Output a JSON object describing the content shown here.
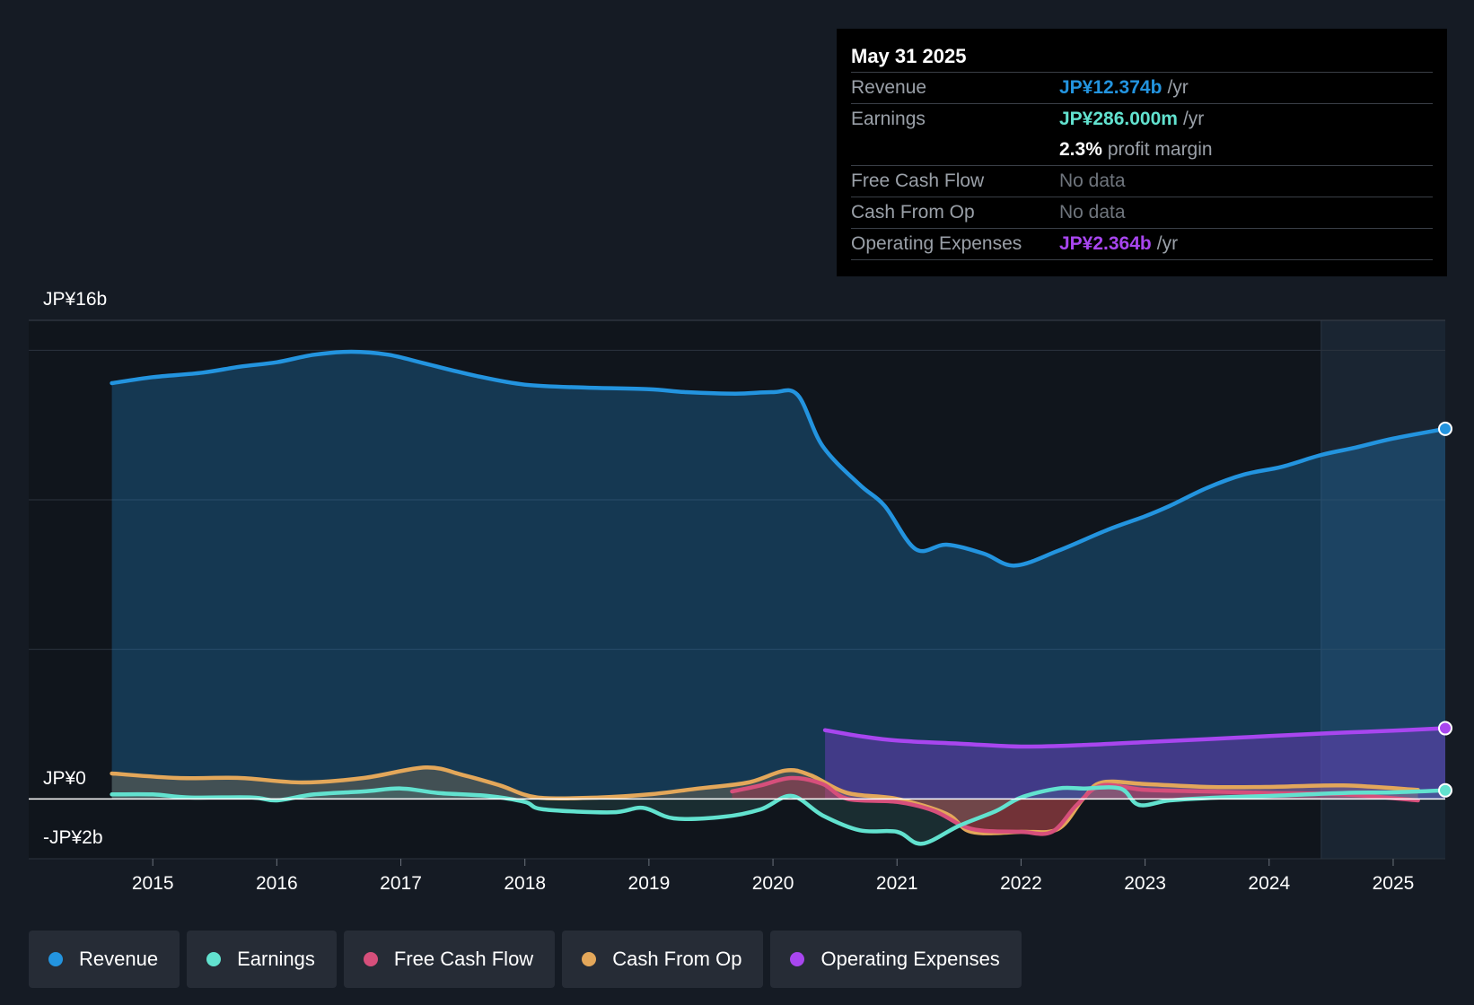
{
  "colors": {
    "revenue": "#2394df",
    "earnings": "#62e2cf",
    "free_cash_flow": "#d64f7b",
    "cash_from_op": "#e3a75a",
    "operating_expenses": "#a846ef"
  },
  "tooltip": {
    "date": "May 31 2025",
    "rows": [
      {
        "label": "Revenue",
        "value": "JP¥12.374b",
        "unit": "/yr"
      },
      {
        "label": "Earnings",
        "value": "JP¥286.000m",
        "unit": "/yr"
      },
      {
        "label": "",
        "value": "2.3%",
        "unit": "profit margin"
      },
      {
        "label": "Free Cash Flow",
        "value": "No data",
        "unit": ""
      },
      {
        "label": "Cash From Op",
        "value": "No data",
        "unit": ""
      },
      {
        "label": "Operating Expenses",
        "value": "JP¥2.364b",
        "unit": "/yr"
      }
    ]
  },
  "legend": [
    "Revenue",
    "Earnings",
    "Free Cash Flow",
    "Cash From Op",
    "Operating Expenses"
  ],
  "chart_data": {
    "type": "area",
    "title": "",
    "xlabel": "",
    "ylabel": "",
    "ylim": [
      -2,
      16
    ],
    "xlim": [
      2014.0,
      2025.42
    ],
    "forecast_start": 2024.42,
    "y_tick_labels": [
      {
        "value": 16,
        "label": "JP¥16b"
      },
      {
        "value": 0,
        "label": "JP¥0"
      },
      {
        "value": -2,
        "label": "-JP¥2b"
      }
    ],
    "gridlines": [
      15,
      10,
      5
    ],
    "x_ticks": [
      {
        "value": 2015,
        "label": "2015"
      },
      {
        "value": 2016,
        "label": "2016"
      },
      {
        "value": 2017,
        "label": "2017"
      },
      {
        "value": 2018,
        "label": "2018"
      },
      {
        "value": 2019,
        "label": "2019"
      },
      {
        "value": 2020,
        "label": "2020"
      },
      {
        "value": 2021,
        "label": "2021"
      },
      {
        "value": 2022,
        "label": "2022"
      },
      {
        "value": 2023,
        "label": "2023"
      },
      {
        "value": 2024,
        "label": "2024"
      },
      {
        "value": 2025,
        "label": "2025"
      }
    ],
    "series": [
      {
        "name": "Revenue",
        "key": "revenue",
        "fill": true,
        "end_marker": true,
        "points": [
          [
            2014.67,
            13.9
          ],
          [
            2015.0,
            14.1
          ],
          [
            2015.4,
            14.25
          ],
          [
            2015.7,
            14.45
          ],
          [
            2016.0,
            14.6
          ],
          [
            2016.3,
            14.85
          ],
          [
            2016.6,
            14.95
          ],
          [
            2016.9,
            14.85
          ],
          [
            2017.2,
            14.55
          ],
          [
            2017.6,
            14.15
          ],
          [
            2018.0,
            13.85
          ],
          [
            2018.5,
            13.75
          ],
          [
            2019.0,
            13.7
          ],
          [
            2019.3,
            13.6
          ],
          [
            2019.7,
            13.55
          ],
          [
            2020.0,
            13.6
          ],
          [
            2020.2,
            13.5
          ],
          [
            2020.4,
            11.8
          ],
          [
            2020.7,
            10.5
          ],
          [
            2020.9,
            9.8
          ],
          [
            2021.15,
            8.35
          ],
          [
            2021.4,
            8.5
          ],
          [
            2021.7,
            8.2
          ],
          [
            2021.95,
            7.8
          ],
          [
            2022.3,
            8.3
          ],
          [
            2022.7,
            9.0
          ],
          [
            2023.0,
            9.45
          ],
          [
            2023.2,
            9.8
          ],
          [
            2023.5,
            10.4
          ],
          [
            2023.8,
            10.85
          ],
          [
            2024.1,
            11.1
          ],
          [
            2024.42,
            11.5
          ],
          [
            2024.7,
            11.75
          ],
          [
            2025.0,
            12.05
          ],
          [
            2025.42,
            12.374
          ]
        ]
      },
      {
        "name": "Operating Expenses",
        "key": "operating_expenses",
        "fill": true,
        "end_marker": true,
        "points": [
          [
            2020.42,
            2.3
          ],
          [
            2020.7,
            2.1
          ],
          [
            2021.0,
            1.95
          ],
          [
            2021.5,
            1.85
          ],
          [
            2022.0,
            1.75
          ],
          [
            2022.5,
            1.8
          ],
          [
            2023.0,
            1.9
          ],
          [
            2023.5,
            2.0
          ],
          [
            2024.0,
            2.1
          ],
          [
            2024.5,
            2.2
          ],
          [
            2025.0,
            2.28
          ],
          [
            2025.42,
            2.364
          ]
        ]
      },
      {
        "name": "Cash From Op",
        "key": "cash_from_op",
        "fill": true,
        "end_marker": false,
        "points": [
          [
            2014.67,
            0.85
          ],
          [
            2015.2,
            0.7
          ],
          [
            2015.7,
            0.7
          ],
          [
            2016.2,
            0.55
          ],
          [
            2016.7,
            0.7
          ],
          [
            2017.2,
            1.05
          ],
          [
            2017.5,
            0.8
          ],
          [
            2017.8,
            0.45
          ],
          [
            2018.1,
            0.05
          ],
          [
            2018.6,
            0.05
          ],
          [
            2019.0,
            0.15
          ],
          [
            2019.4,
            0.35
          ],
          [
            2019.8,
            0.55
          ],
          [
            2020.1,
            0.95
          ],
          [
            2020.3,
            0.8
          ],
          [
            2020.6,
            0.2
          ],
          [
            2021.0,
            0.0
          ],
          [
            2021.4,
            -0.5
          ],
          [
            2021.6,
            -1.1
          ],
          [
            2022.0,
            -1.1
          ],
          [
            2022.3,
            -1.0
          ],
          [
            2022.5,
            0.0
          ],
          [
            2022.65,
            0.55
          ],
          [
            2023.0,
            0.5
          ],
          [
            2023.5,
            0.4
          ],
          [
            2024.0,
            0.4
          ],
          [
            2024.6,
            0.45
          ],
          [
            2025.2,
            0.3
          ]
        ]
      },
      {
        "name": "Free Cash Flow",
        "key": "free_cash_flow",
        "fill": true,
        "end_marker": false,
        "points": [
          [
            2019.67,
            0.25
          ],
          [
            2019.9,
            0.45
          ],
          [
            2020.15,
            0.7
          ],
          [
            2020.4,
            0.5
          ],
          [
            2020.6,
            0.0
          ],
          [
            2021.0,
            -0.1
          ],
          [
            2021.3,
            -0.4
          ],
          [
            2021.6,
            -1.0
          ],
          [
            2022.0,
            -1.1
          ],
          [
            2022.25,
            -1.1
          ],
          [
            2022.45,
            -0.2
          ],
          [
            2022.65,
            0.45
          ],
          [
            2023.0,
            0.3
          ],
          [
            2023.5,
            0.25
          ],
          [
            2024.0,
            0.2
          ],
          [
            2024.6,
            0.15
          ],
          [
            2025.2,
            -0.05
          ]
        ]
      },
      {
        "name": "Earnings",
        "key": "earnings",
        "fill": true,
        "end_marker": true,
        "points": [
          [
            2014.67,
            0.15
          ],
          [
            2015.0,
            0.15
          ],
          [
            2015.3,
            0.05
          ],
          [
            2015.8,
            0.05
          ],
          [
            2016.0,
            -0.05
          ],
          [
            2016.3,
            0.15
          ],
          [
            2016.7,
            0.25
          ],
          [
            2017.0,
            0.35
          ],
          [
            2017.3,
            0.2
          ],
          [
            2017.7,
            0.1
          ],
          [
            2018.0,
            -0.1
          ],
          [
            2018.15,
            -0.35
          ],
          [
            2018.7,
            -0.45
          ],
          [
            2018.95,
            -0.3
          ],
          [
            2019.2,
            -0.65
          ],
          [
            2019.6,
            -0.6
          ],
          [
            2019.9,
            -0.35
          ],
          [
            2020.15,
            0.1
          ],
          [
            2020.4,
            -0.55
          ],
          [
            2020.7,
            -1.05
          ],
          [
            2021.0,
            -1.1
          ],
          [
            2021.2,
            -1.5
          ],
          [
            2021.5,
            -0.9
          ],
          [
            2021.8,
            -0.4
          ],
          [
            2022.0,
            0.05
          ],
          [
            2022.3,
            0.35
          ],
          [
            2022.5,
            0.35
          ],
          [
            2022.8,
            0.35
          ],
          [
            2022.95,
            -0.2
          ],
          [
            2023.2,
            -0.05
          ],
          [
            2023.6,
            0.05
          ],
          [
            2024.0,
            0.1
          ],
          [
            2024.6,
            0.2
          ],
          [
            2025.0,
            0.22
          ],
          [
            2025.42,
            0.286
          ]
        ]
      }
    ]
  }
}
